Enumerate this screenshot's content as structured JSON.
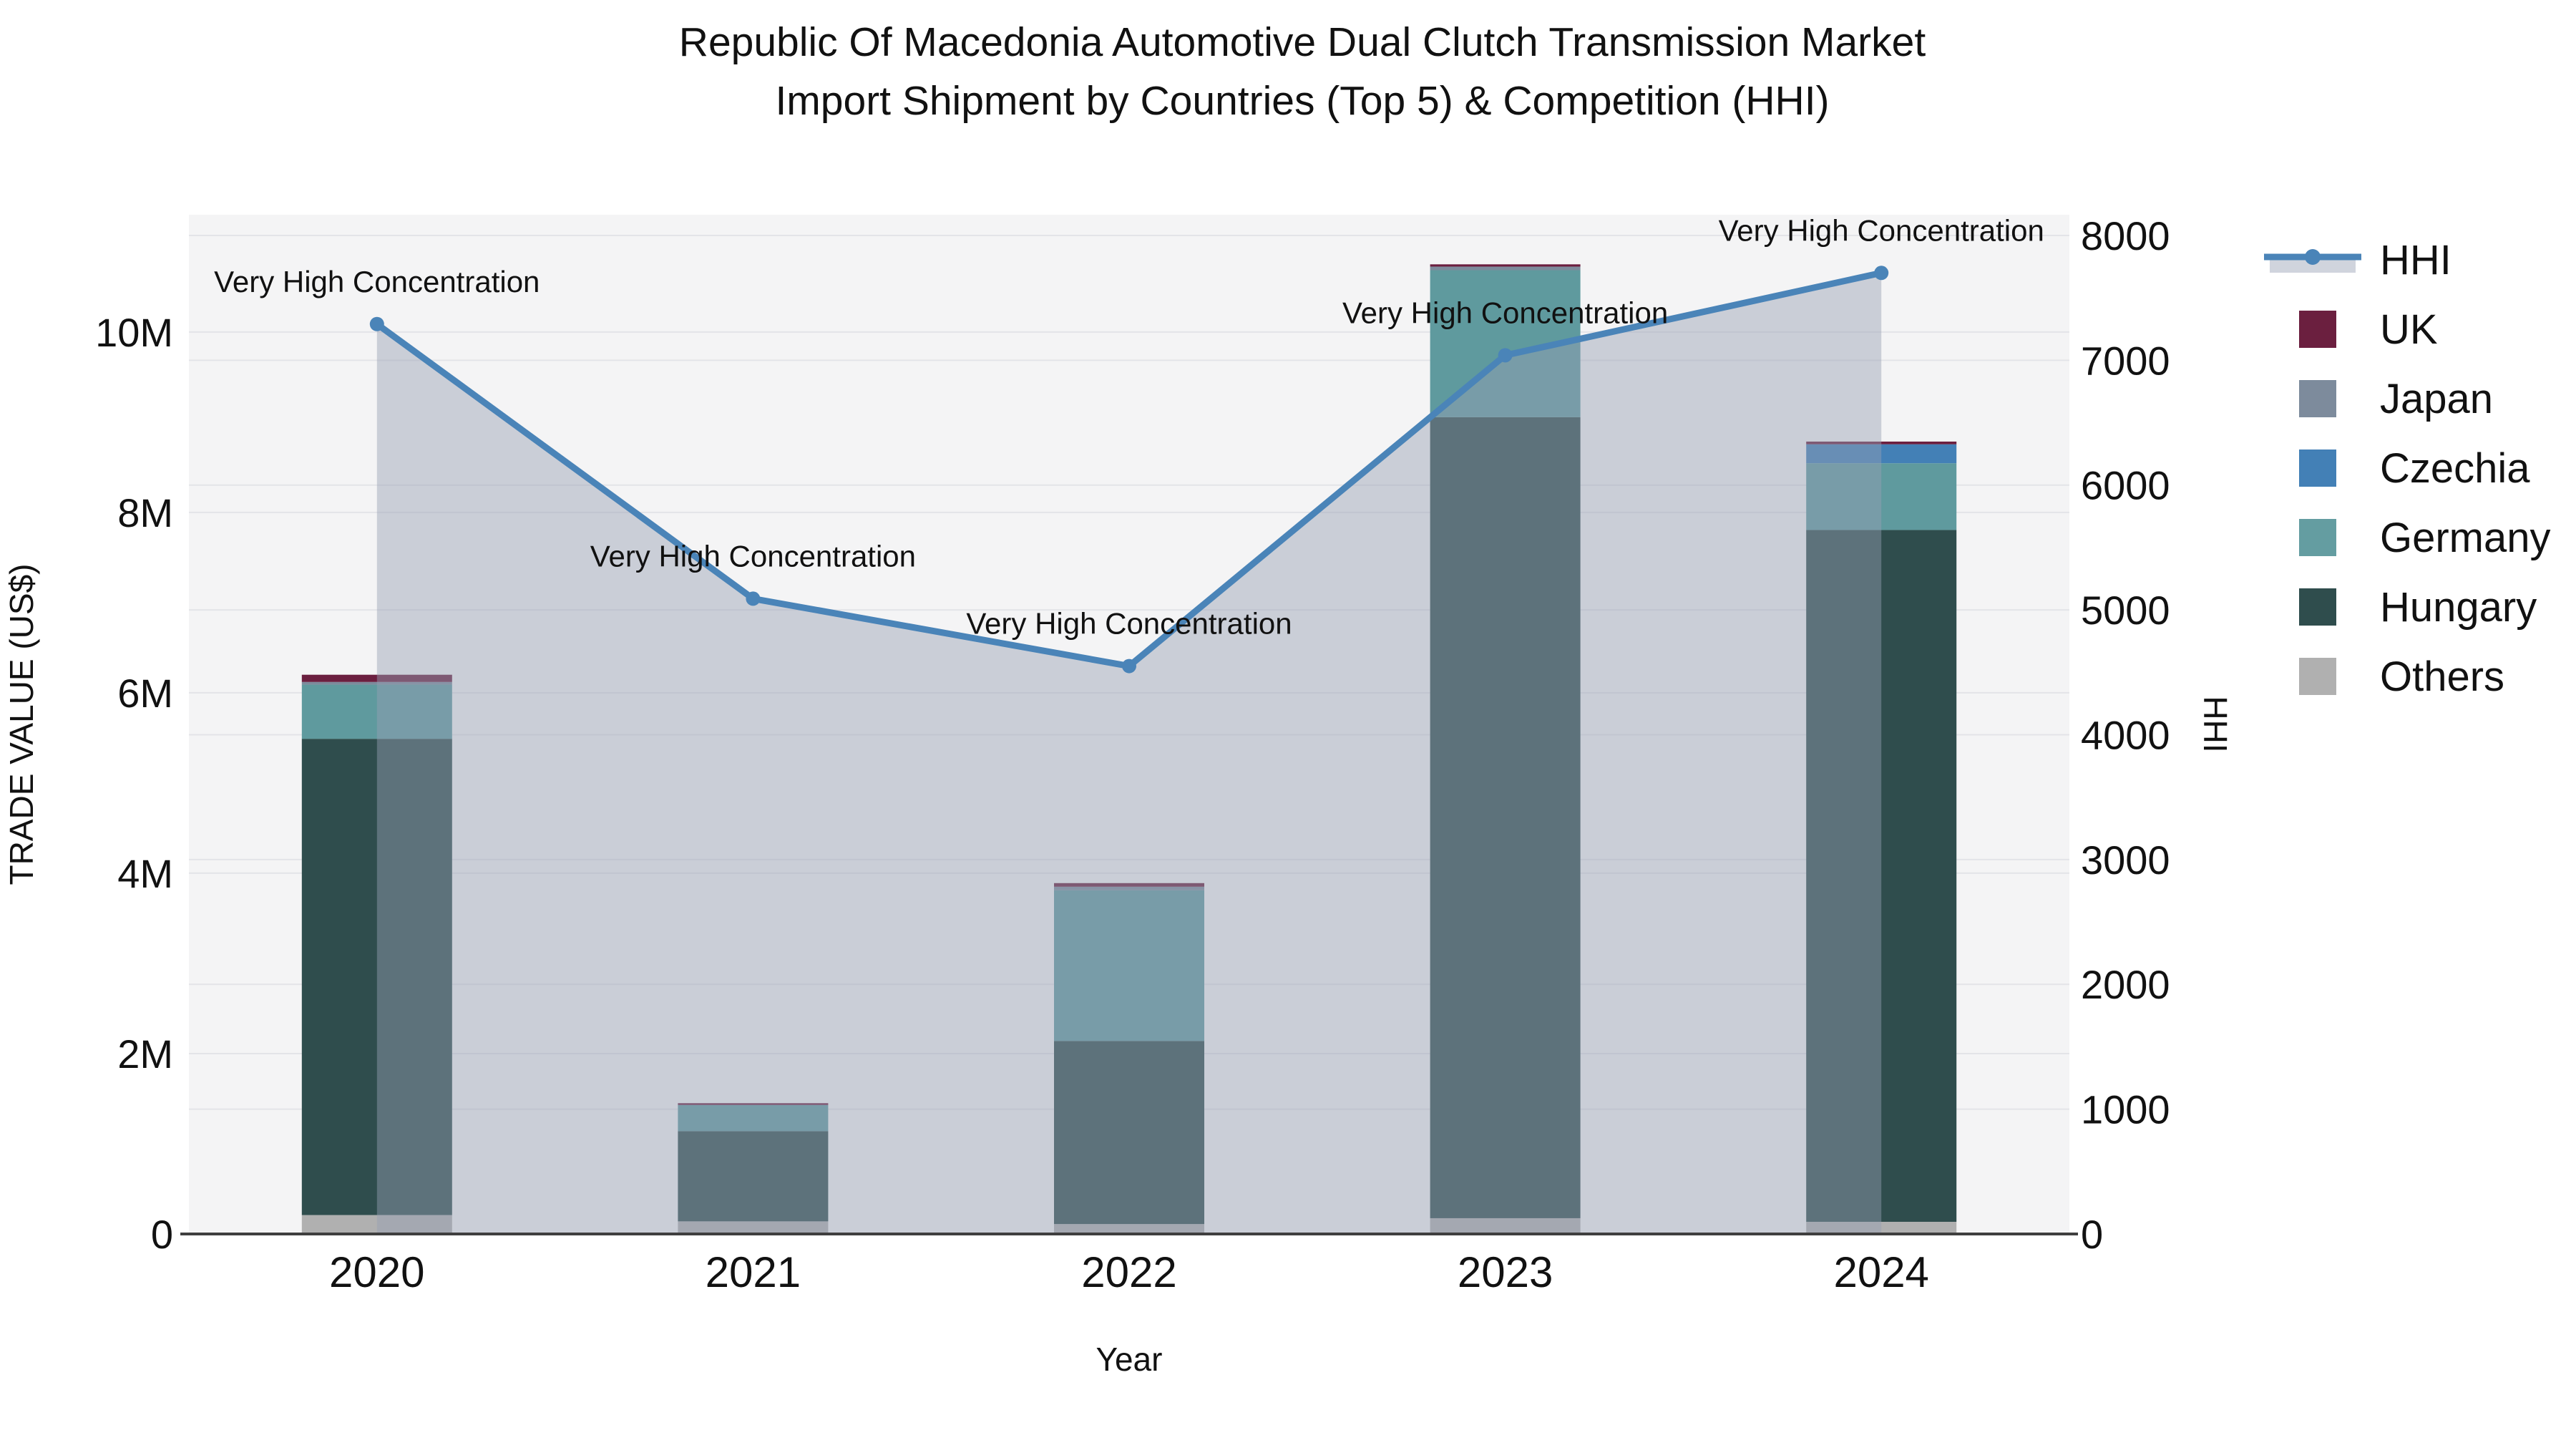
{
  "title": {
    "line1": "Republic Of Macedonia Automotive Dual Clutch Transmission Market",
    "line2": "Import Shipment by Countries (Top 5) & Competition (HHI)"
  },
  "chart_data": {
    "type": "bar+line",
    "title": "Republic Of Macedonia Automotive Dual Clutch Transmission Market Import Shipment by Countries (Top 5) & Competition (HHI)",
    "xlabel": "Year",
    "ylabel_left": "TRADE VALUE (US$)",
    "ylabel_right": "HHI",
    "categories": [
      "2020",
      "2021",
      "2022",
      "2023",
      "2024"
    ],
    "bar_series": [
      {
        "name": "Others",
        "color": "#b0b0b0",
        "values": [
          210000,
          140000,
          110000,
          175000,
          135000
        ]
      },
      {
        "name": "Hungary",
        "color": "#2f4d4d",
        "values": [
          5280000,
          1000000,
          2030000,
          8880000,
          7670000
        ]
      },
      {
        "name": "Germany",
        "color": "#5f9a9e",
        "values": [
          600000,
          290000,
          1670000,
          1630000,
          740000
        ]
      },
      {
        "name": "Czechia",
        "color": "#4380b6",
        "values": [
          0,
          0,
          0,
          0,
          210000
        ]
      },
      {
        "name": "Japan",
        "color": "#7d8b9c",
        "values": [
          30000,
          0,
          40000,
          40000,
          0
        ]
      },
      {
        "name": "UK",
        "color": "#6b1f3f",
        "values": [
          80000,
          20000,
          40000,
          25000,
          30000
        ]
      }
    ],
    "line_series": {
      "name": "HHI",
      "color": "#4a84b8",
      "area_fill": "rgba(150,160,180,0.45)",
      "values": [
        7290,
        5090,
        4550,
        7040,
        7700
      ]
    },
    "annotations": [
      "Very High Concentration",
      "Very High Concentration",
      "Very High Concentration",
      "Very High Concentration",
      "Very High Concentration"
    ],
    "yticks_left": {
      "values": [
        0,
        2000000,
        4000000,
        6000000,
        8000000,
        10000000
      ],
      "labels": [
        "0",
        "2M",
        "4M",
        "6M",
        "8M",
        "10M"
      ]
    },
    "yticks_right": {
      "values": [
        0,
        1000,
        2000,
        3000,
        4000,
        5000,
        6000,
        7000,
        8000
      ],
      "labels": [
        "0",
        "1000",
        "2000",
        "3000",
        "4000",
        "5000",
        "6000",
        "7000",
        "8000"
      ]
    },
    "ylim_left": [
      0,
      11300000
    ],
    "ylim_right": [
      0,
      8166
    ],
    "grid": true,
    "legend_position": "right",
    "plot_bg": "#f4f4f5",
    "grid_color": "#e3e4e8",
    "axisline_color": "#3f3f3f"
  },
  "legend": {
    "items": [
      {
        "label": "HHI",
        "type": "line",
        "color": "#4a84b8",
        "fill": "rgba(150,160,180,0.45)"
      },
      {
        "label": "UK",
        "type": "swatch",
        "color": "#6b1f3f"
      },
      {
        "label": "Japan",
        "type": "swatch",
        "color": "#7d8b9c"
      },
      {
        "label": "Czechia",
        "type": "swatch",
        "color": "#4380b6"
      },
      {
        "label": "Germany",
        "type": "swatch",
        "color": "#649da1"
      },
      {
        "label": "Hungary",
        "type": "swatch",
        "color": "#2f4d4d"
      },
      {
        "label": "Others",
        "type": "swatch",
        "color": "#b0b0b0"
      }
    ]
  }
}
